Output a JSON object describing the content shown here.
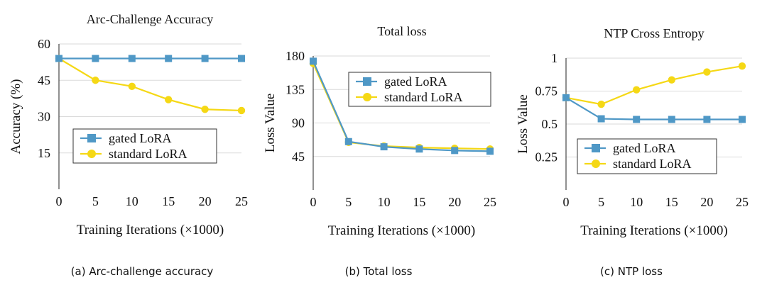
{
  "figure": {
    "series_colors": {
      "gated": "#4f98c6",
      "standard": "#f5d815"
    }
  },
  "chart_data": [
    {
      "type": "line",
      "title": "Arc-Challenge Accuracy",
      "xlabel": "Training Iterations (×1000)",
      "ylabel": "Accuracy (%)",
      "caption": "(a)  Arc-challenge accuracy",
      "x": [
        0,
        5,
        10,
        15,
        20,
        25
      ],
      "xticks": [
        "0",
        "5",
        "10",
        "15",
        "20",
        "25"
      ],
      "ylim": [
        0,
        60
      ],
      "yticks": [
        15,
        30,
        45,
        60
      ],
      "ytick_labels": [
        "15",
        "30",
        "45",
        "60"
      ],
      "legend": "center-left",
      "series": [
        {
          "name": "gated LoRA",
          "values": [
            54,
            54,
            54,
            54,
            54,
            54
          ]
        },
        {
          "name": "standard LoRA",
          "values": [
            54,
            45,
            42.5,
            37,
            33,
            32.5
          ]
        }
      ]
    },
    {
      "type": "line",
      "title": "Total loss",
      "xlabel": "Training Iterations (×1000)",
      "ylabel": "Loss Value",
      "caption": "(b)  Total loss",
      "x": [
        0,
        5,
        10,
        15,
        20,
        25
      ],
      "xticks": [
        "0",
        "5",
        "10",
        "15",
        "20",
        "25"
      ],
      "ylim": [
        0,
        180
      ],
      "yticks": [
        45,
        90,
        135,
        180
      ],
      "ytick_labels": [
        "45",
        "90",
        "135",
        "180"
      ],
      "legend": "top-right",
      "series": [
        {
          "name": "gated LoRA",
          "values": [
            173,
            65,
            58,
            55,
            53,
            52
          ]
        },
        {
          "name": "standard LoRA",
          "values": [
            170,
            64,
            59,
            57,
            56,
            55
          ]
        }
      ]
    },
    {
      "type": "line",
      "title": "NTP Cross Entropy",
      "xlabel": "Training Iterations (×1000)",
      "ylabel": "Loss Value",
      "caption": "(c)  NTP loss",
      "x": [
        0,
        5,
        10,
        15,
        20,
        25
      ],
      "xticks": [
        "0",
        "5",
        "10",
        "15",
        "20",
        "25"
      ],
      "ylim": [
        0,
        1
      ],
      "yticks": [
        0.25,
        0.5,
        0.75,
        1
      ],
      "ytick_labels": [
        "0.25",
        "0.5",
        "0.75",
        "1"
      ],
      "legend": "bottom-right",
      "series": [
        {
          "name": "gated LoRA",
          "values": [
            0.7,
            0.54,
            0.535,
            0.535,
            0.535,
            0.535
          ]
        },
        {
          "name": "standard LoRA",
          "values": [
            0.7,
            0.65,
            0.76,
            0.835,
            0.895,
            0.94
          ]
        }
      ]
    }
  ]
}
